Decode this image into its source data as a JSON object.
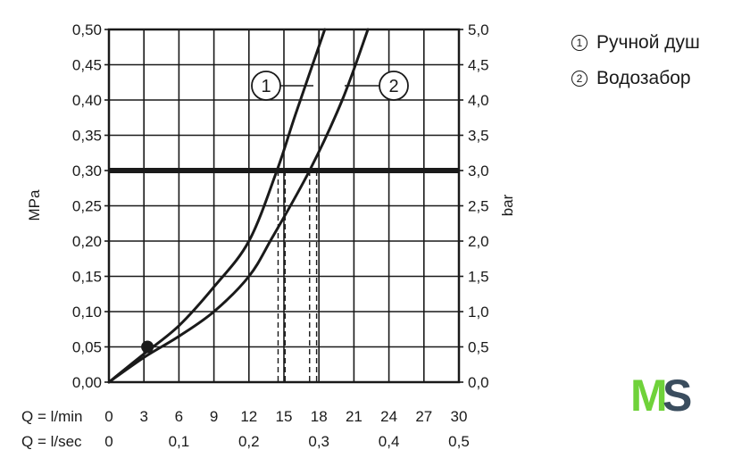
{
  "chart_data": {
    "type": "line",
    "y_left": {
      "label": "MPa",
      "range": [
        0,
        0.5
      ],
      "ticks": [
        "0,00",
        "0,05",
        "0,10",
        "0,15",
        "0,20",
        "0,25",
        "0,30",
        "0,35",
        "0,40",
        "0,45",
        "0,50"
      ]
    },
    "y_right": {
      "label": "bar",
      "range": [
        0,
        5
      ],
      "ticks": [
        "0,0",
        "0,5",
        "1,0",
        "1,5",
        "2,0",
        "2,5",
        "3,0",
        "3,5",
        "4,0",
        "4,5",
        "5,0"
      ]
    },
    "x_primary": {
      "label": "Q = l/min",
      "range": [
        0,
        30
      ],
      "ticks": [
        "0",
        "3",
        "6",
        "9",
        "12",
        "15",
        "18",
        "21",
        "24",
        "27",
        "30"
      ]
    },
    "x_secondary": {
      "label": "Q = l/sec",
      "ticks": [
        "0",
        "0,1",
        "0,2",
        "0,3",
        "0,4",
        "0,5"
      ]
    },
    "grid": true,
    "reference_line": {
      "y": 0.3
    },
    "series": [
      {
        "name": "1",
        "marker_label": "1",
        "points": [
          [
            0,
            0
          ],
          [
            3,
            0.04
          ],
          [
            6,
            0.08
          ],
          [
            9,
            0.135
          ],
          [
            12,
            0.2
          ],
          [
            14.4,
            0.3
          ],
          [
            16,
            0.38
          ],
          [
            18.5,
            0.5
          ]
        ],
        "dashed_intersection_x": [
          14.5,
          15.1
        ]
      },
      {
        "name": "2",
        "marker_label": "2",
        "points": [
          [
            0,
            0
          ],
          [
            3,
            0.035
          ],
          [
            6,
            0.065
          ],
          [
            9,
            0.1
          ],
          [
            12,
            0.15
          ],
          [
            14,
            0.205
          ],
          [
            17.2,
            0.3
          ],
          [
            20,
            0.4
          ],
          [
            22.2,
            0.5
          ]
        ],
        "dashed_intersection_x": [
          17.2,
          17.8
        ]
      }
    ],
    "highlight_point": [
      3.3,
      0.05
    ]
  },
  "legend": [
    {
      "marker": "1",
      "label": "Ручной душ"
    },
    {
      "marker": "2",
      "label": "Водозабор"
    }
  ],
  "logo": {
    "left": "M",
    "right": "S",
    "left_color": "#6fd23a",
    "right_color": "#3a4d5e"
  },
  "colors": {
    "ink": "#1a1a1a"
  }
}
